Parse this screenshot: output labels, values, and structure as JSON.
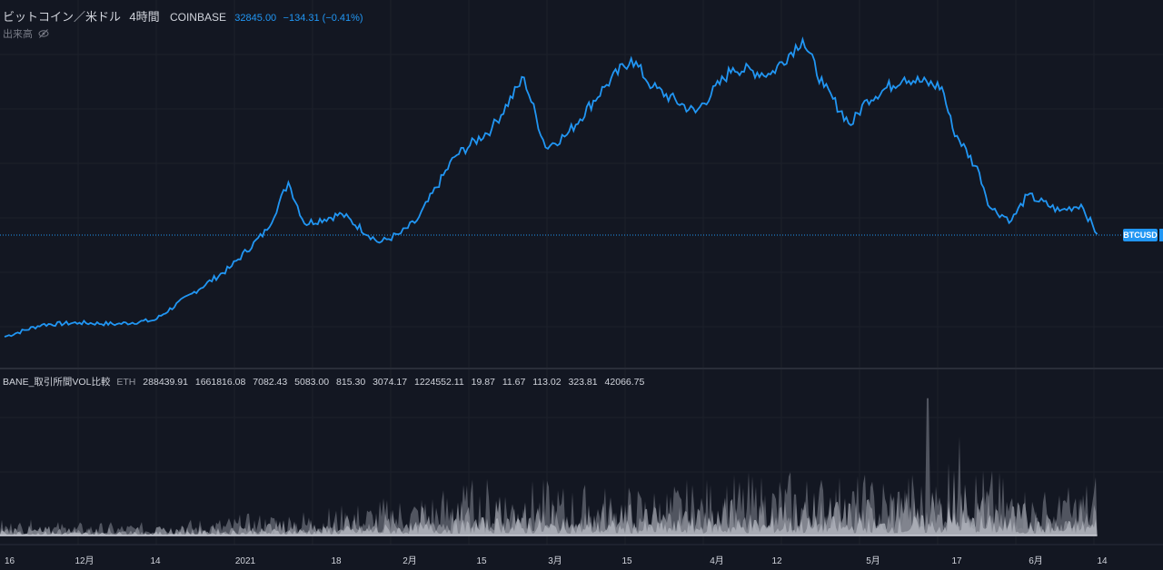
{
  "header": {
    "symbol": "ビットコイン／米ドル",
    "interval": "4時間",
    "exchange": "COINBASE",
    "last_price": "32845.00",
    "change": "−134.31 (−0.41%)",
    "volume_label": "出来高",
    "volume_hidden_icon": "eye-slash-icon"
  },
  "indicator": {
    "name": "BANE_取引所間VOL比較",
    "suffix": "ETH",
    "values": [
      "288439.91",
      "1661816.08",
      "7082.43",
      "5083.00",
      "815.30",
      "3074.17",
      "1224552.11",
      "19.87",
      "11.67",
      "113.02",
      "323.81",
      "42066.75"
    ]
  },
  "price_label": "BTCUSD",
  "colors": {
    "background": "#131722",
    "grid": "#1e222d",
    "line": "#2196f3",
    "volume": "#787b86",
    "text": "#d1d4dc"
  },
  "chart_data": [
    {
      "type": "line",
      "series": [
        {
          "name": "BTCUSD",
          "x": [
            "2020-11-16",
            "2020-11-23",
            "2020-11-30",
            "2020-12-07",
            "2020-12-14",
            "2020-12-21",
            "2020-12-28",
            "2021-01-04",
            "2021-01-08",
            "2021-01-11",
            "2021-01-18",
            "2021-01-25",
            "2021-01-29",
            "2021-02-01",
            "2021-02-08",
            "2021-02-15",
            "2021-02-21",
            "2021-02-25",
            "2021-03-01",
            "2021-03-08",
            "2021-03-13",
            "2021-03-17",
            "2021-03-25",
            "2021-04-01",
            "2021-04-08",
            "2021-04-14",
            "2021-04-18",
            "2021-04-23",
            "2021-04-26",
            "2021-05-03",
            "2021-05-10",
            "2021-05-12",
            "2021-05-17",
            "2021-05-19",
            "2021-05-23",
            "2021-05-26",
            "2021-06-01",
            "2021-06-05",
            "2021-06-08"
          ],
          "values": [
            16700,
            18600,
            18900,
            18700,
            19300,
            23500,
            27500,
            33500,
            41000,
            34500,
            36000,
            31500,
            33000,
            35000,
            45000,
            49500,
            57500,
            46500,
            48500,
            56000,
            60500,
            56000,
            52000,
            59000,
            58000,
            63500,
            56000,
            50000,
            54000,
            57500,
            56000,
            49500,
            42500,
            37000,
            35000,
            39000,
            36500,
            37500,
            32845
          ]
        }
      ]
    },
    {
      "type": "area",
      "series": [
        {
          "name": "BANE_取引所間VOL比較",
          "x": [
            "2020-11-16",
            "2020-12-01",
            "2020-12-14",
            "2021-01-01",
            "2021-01-18",
            "2021-02-01",
            "2021-02-15",
            "2021-03-01",
            "2021-03-15",
            "2021-04-01",
            "2021-04-12",
            "2021-04-26",
            "2021-05-03",
            "2021-05-10",
            "2021-05-12",
            "2021-05-17",
            "2021-05-24",
            "2021-06-01",
            "2021-06-08"
          ],
          "values": [
            0.15,
            0.12,
            0.12,
            0.2,
            0.28,
            0.4,
            0.55,
            0.48,
            0.45,
            0.55,
            0.6,
            0.55,
            0.6,
            0.6,
            1.0,
            0.65,
            0.5,
            0.4,
            0.6
          ]
        }
      ]
    }
  ],
  "x_ticks": [
    "16",
    "12月",
    "14",
    "2021",
    "18",
    "2月",
    "15",
    "3月",
    "15",
    "4月",
    "12",
    "5月",
    "17",
    "6月",
    "14"
  ]
}
